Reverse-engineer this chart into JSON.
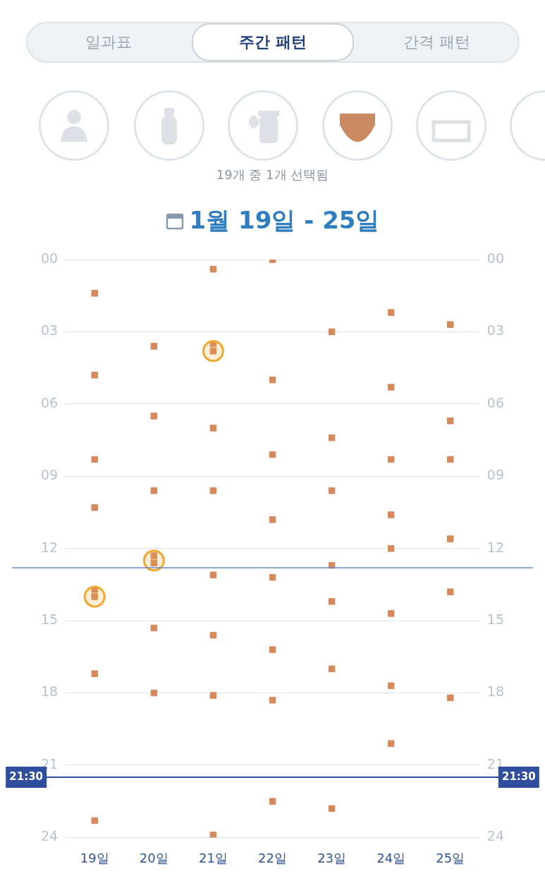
{
  "chart_data": {
    "type": "scatter",
    "title": "1월 19일 - 25일",
    "subtitle": "19개 중 1개 선택됨",
    "annotations": [
      "일과표",
      "주간 패턴",
      "간격 패턴"
    ],
    "categories": [
      "19일",
      "20일",
      "21일",
      "22일",
      "23일",
      "24일",
      "25일"
    ],
    "ylim": [
      24,
      0
    ],
    "yticks": [
      {
        "value": 0,
        "label": "00"
      },
      {
        "value": 3,
        "label": "03"
      },
      {
        "value": 6,
        "label": "06"
      },
      {
        "value": 9,
        "label": "09"
      },
      {
        "value": 12,
        "label": "12"
      },
      {
        "value": 15,
        "label": "15"
      },
      {
        "value": 18,
        "label": "18"
      },
      {
        "value": 21,
        "label": "21"
      },
      {
        "value": 24,
        "label": "24"
      }
    ],
    "y2lim": [
      24,
      0
    ],
    "y2ticks": [
      {
        "value": 0,
        "label": "00"
      },
      {
        "value": 3,
        "label": "03"
      },
      {
        "value": 6,
        "label": "06"
      },
      {
        "value": 9,
        "label": "09"
      },
      {
        "value": 12,
        "label": "12"
      },
      {
        "value": 15,
        "label": "15"
      },
      {
        "value": 18,
        "label": "18"
      },
      {
        "value": 21,
        "label": "21"
      },
      {
        "value": 24,
        "label": "24"
      }
    ],
    "grid": "y",
    "series": [
      {
        "color": "#d4895e",
        "marker": "square",
        "x": [
          "19일",
          "19일",
          "19일",
          "19일",
          "19일",
          "19일",
          "19일",
          "19일",
          "20일",
          "20일",
          "20일",
          "20일",
          "20일",
          "20일",
          "20일",
          "21일",
          "21일",
          "21일",
          "21일",
          "21일",
          "21일",
          "21일",
          "21일",
          "21일",
          "22일",
          "22일",
          "22일",
          "22일",
          "22일",
          "22일",
          "22일",
          "22일",
          "23일",
          "23일",
          "23일",
          "23일",
          "23일",
          "23일",
          "23일",
          "24일",
          "24일",
          "24일",
          "24일",
          "24일",
          "24일",
          "24일",
          "24일",
          "25일",
          "25일",
          "25일",
          "25일",
          "25일",
          "25일"
        ],
        "values": [
          1.4,
          4.8,
          8.3,
          10.3,
          13.7,
          14.0,
          17.2,
          23.3,
          3.6,
          6.5,
          9.6,
          12.3,
          12.6,
          15.3,
          18.0,
          0.4,
          3.5,
          3.8,
          7.0,
          9.6,
          13.1,
          15.6,
          18.1,
          23.9,
          0.0,
          5.0,
          8.1,
          10.8,
          13.2,
          16.2,
          18.3,
          22.5,
          3.0,
          7.4,
          9.6,
          12.7,
          14.2,
          17.0,
          22.8,
          2.2,
          5.3,
          8.3,
          10.6,
          12.0,
          14.7,
          17.7,
          20.1,
          2.7,
          6.7,
          8.3,
          11.6,
          13.8,
          18.2
        ]
      },
      {
        "color": "#f0a830",
        "marker": "circle",
        "x": [
          "19일",
          "20일",
          "21일"
        ],
        "values": [
          14.0,
          12.5,
          3.8
        ]
      }
    ],
    "ref_lines": [
      {
        "axis": "y",
        "value": 12.8,
        "label": null,
        "color": "#6b86c4"
      },
      {
        "axis": "y",
        "value": 21.5,
        "label": "21:30",
        "color": "#2f4f9e"
      }
    ]
  }
}
